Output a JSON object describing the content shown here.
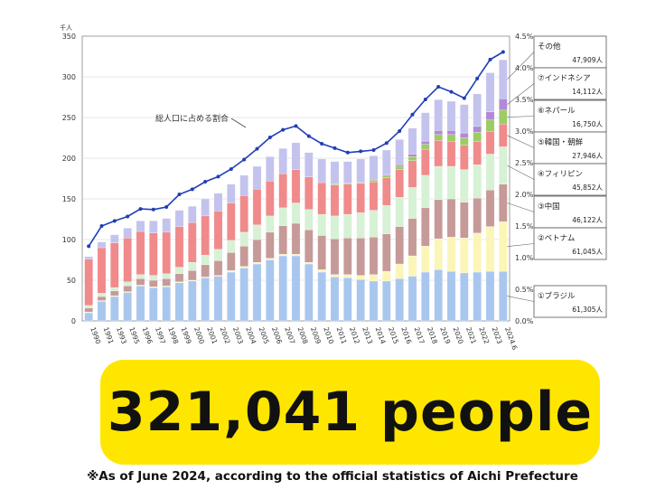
{
  "chart_data": {
    "type": "bar",
    "stacked": true,
    "unit_label": "千人",
    "ylim": [
      0,
      350
    ],
    "y_ticks": [
      "0",
      "50",
      "100",
      "150",
      "200",
      "250",
      "300",
      "350"
    ],
    "y2lim": [
      0,
      4.5
    ],
    "y2_ticks": [
      "0.0%",
      "0.5%",
      "1.0%",
      "1.5%",
      "2.0%",
      "2.5%",
      "3.0%",
      "3.5%",
      "4.0%",
      "4.5%"
    ],
    "categories": [
      "1990",
      "1991",
      "1993",
      "1995",
      "1996",
      "1997",
      "1998",
      "1999",
      "2000",
      "2001",
      "2002",
      "2003",
      "2004",
      "2005",
      "2006",
      "2007",
      "2008",
      "2009",
      "2010",
      "2011",
      "2012",
      "2013",
      "2014",
      "2015",
      "2016",
      "2017",
      "2018",
      "2019",
      "2020",
      "2021",
      "2022",
      "2023",
      "2024.6"
    ],
    "series": [
      {
        "name": "①ブラジル",
        "value_label": "61,305人",
        "color": "#a9c7ee",
        "values": [
          10,
          24,
          30,
          35,
          43,
          41,
          42,
          47,
          49,
          53,
          55,
          60,
          65,
          70,
          75,
          80,
          80,
          70,
          60,
          54,
          53,
          51,
          49,
          49,
          52,
          55,
          60,
          63,
          61,
          59,
          60,
          61,
          61
        ]
      },
      {
        "name": "②ベトナム",
        "value_label": "61,045人",
        "color": "#fbf6b8",
        "values": [
          1,
          1,
          1,
          1,
          1,
          1,
          1,
          1,
          1,
          1,
          1,
          2,
          2,
          2,
          2,
          2,
          2,
          2,
          3,
          3,
          4,
          5,
          8,
          12,
          18,
          25,
          32,
          38,
          42,
          43,
          48,
          55,
          61
        ]
      },
      {
        "name": "③中国",
        "value_label": "46,122人",
        "color": "#c69a99",
        "values": [
          5,
          5,
          6,
          7,
          8,
          8,
          9,
          10,
          12,
          15,
          18,
          22,
          25,
          28,
          32,
          35,
          38,
          40,
          42,
          44,
          45,
          46,
          46,
          46,
          46,
          46,
          47,
          48,
          47,
          44,
          43,
          45,
          46
        ]
      },
      {
        "name": "④フィリピン",
        "value_label": "45,852人",
        "color": "#d6f1d4",
        "values": [
          3,
          4,
          4,
          5,
          5,
          6,
          6,
          8,
          10,
          12,
          14,
          15,
          17,
          18,
          20,
          22,
          25,
          25,
          26,
          28,
          29,
          31,
          33,
          35,
          36,
          38,
          40,
          41,
          40,
          40,
          41,
          44,
          46
        ]
      },
      {
        "name": "⑤韓国・朝鮮",
        "value_label": "27,946人",
        "color": "#f08a8b",
        "values": [
          57,
          56,
          55,
          54,
          53,
          52,
          51,
          50,
          49,
          48,
          47,
          46,
          45,
          44,
          43,
          42,
          41,
          40,
          39,
          38,
          37,
          36,
          35,
          34,
          34,
          33,
          32,
          32,
          31,
          30,
          29,
          28,
          28
        ]
      },
      {
        "name": "⑥ネパール",
        "value_label": "16,750人",
        "color": "#9ccc62",
        "values": [
          0,
          0,
          0,
          0,
          0,
          0,
          0,
          0,
          0,
          0,
          0,
          0,
          0,
          0,
          0,
          0,
          0,
          0,
          0,
          1,
          1,
          1,
          2,
          3,
          4,
          5,
          6,
          7,
          8,
          9,
          11,
          14,
          17
        ]
      },
      {
        "name": "⑦インドネシア",
        "value_label": "14,112人",
        "color": "#b289d6",
        "values": [
          0,
          0,
          0,
          0,
          0,
          0,
          0,
          0,
          0,
          0,
          0,
          0,
          0,
          0,
          0,
          0,
          0,
          0,
          0,
          0,
          0,
          1,
          1,
          1,
          2,
          3,
          4,
          5,
          5,
          6,
          7,
          10,
          14
        ]
      },
      {
        "name": "その他",
        "value_label": "47,909人",
        "color": "#c3c3ee",
        "values": [
          3,
          7,
          10,
          12,
          13,
          15,
          17,
          20,
          20,
          21,
          22,
          23,
          25,
          28,
          30,
          31,
          33,
          30,
          29,
          28,
          27,
          28,
          29,
          30,
          31,
          32,
          35,
          38,
          36,
          35,
          40,
          48,
          48
        ]
      }
    ],
    "ratio_line": {
      "name": "総人口に占める割合",
      "color": "#1f3fb6",
      "values": [
        1.18,
        1.5,
        1.58,
        1.65,
        1.77,
        1.76,
        1.8,
        2.0,
        2.08,
        2.2,
        2.28,
        2.4,
        2.55,
        2.72,
        2.9,
        3.02,
        3.08,
        2.92,
        2.8,
        2.73,
        2.66,
        2.68,
        2.7,
        2.81,
        3.0,
        3.26,
        3.5,
        3.7,
        3.62,
        3.52,
        3.83,
        4.13,
        4.25
      ]
    }
  },
  "headline": "321,041 people",
  "footnote": "※As of June 2024, according to the official statistics of Aichi Prefecture"
}
